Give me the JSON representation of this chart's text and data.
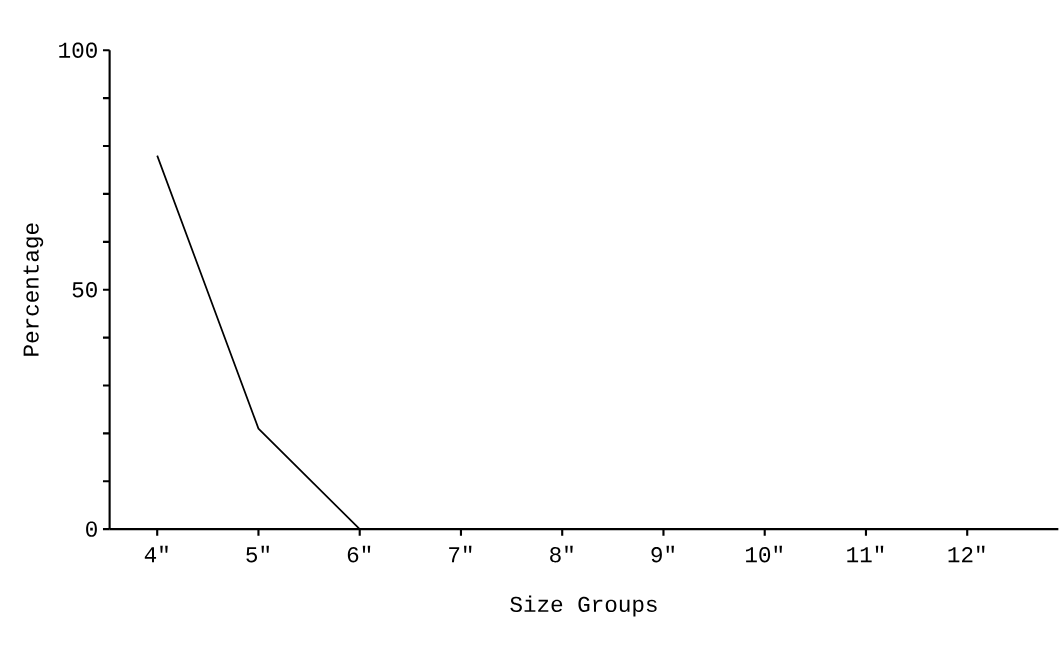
{
  "chart_data": {
    "type": "line",
    "xlabel": "Size Groups",
    "ylabel": "Percentage",
    "categories": [
      "4\"",
      "5\"",
      "6\"",
      "7\"",
      "8\"",
      "9\"",
      "10\"",
      "11\"",
      "12\""
    ],
    "values": [
      78,
      21,
      0,
      0,
      0,
      0,
      0,
      0,
      0
    ],
    "color": "#000000",
    "marker": "none",
    "line_style": "solid",
    "grid": false,
    "ylim": [
      0,
      100
    ],
    "yticks": [
      0,
      {
        "value": 10,
        "label": null
      },
      {
        "value": 20,
        "label": null
      },
      {
        "value": 30,
        "label": null
      },
      {
        "value": 40,
        "label": null
      },
      50,
      {
        "value": 60,
        "label": null
      },
      {
        "value": 70,
        "label": null
      },
      {
        "value": 80,
        "label": null
      },
      {
        "value": 90,
        "label": null
      },
      100
    ]
  }
}
